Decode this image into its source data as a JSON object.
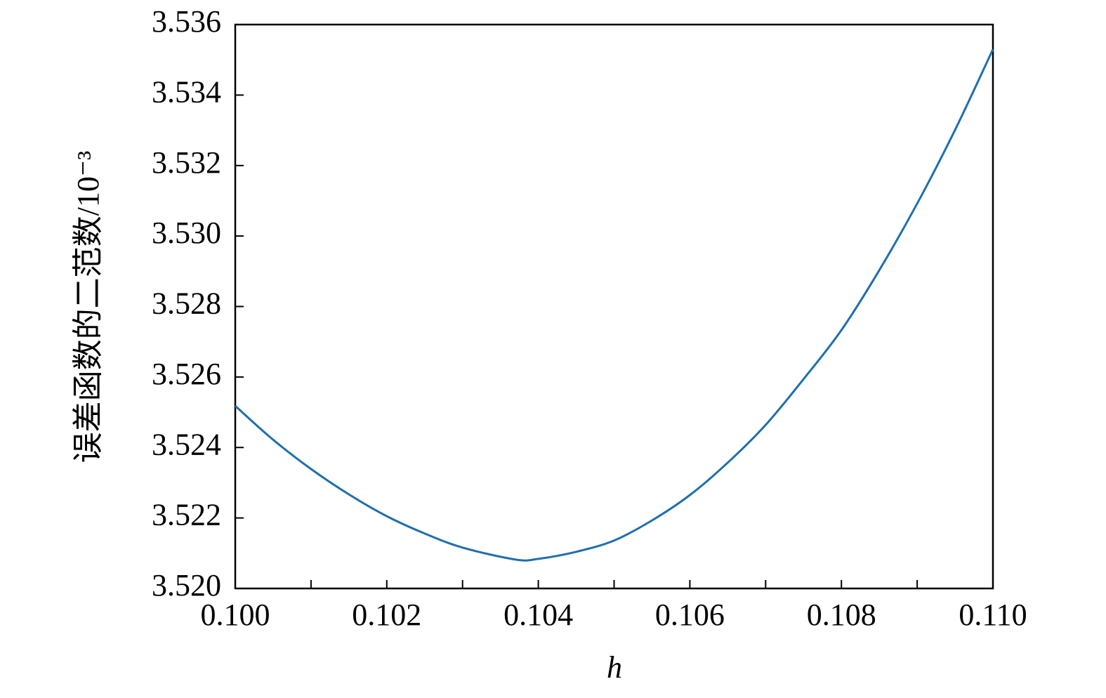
{
  "chart_data": {
    "type": "line",
    "x_label": "h",
    "y_label": "误差函数的二范数/10⁻³",
    "x": [
      0.1,
      0.1005,
      0.101,
      0.1015,
      0.102,
      0.1025,
      0.103,
      0.1037,
      0.104,
      0.1045,
      0.105,
      0.1055,
      0.106,
      0.1065,
      0.107,
      0.1075,
      0.108,
      0.1085,
      0.109,
      0.1095,
      0.11
    ],
    "series": [
      {
        "color": "#1f6fae",
        "values": [
          3.52518,
          3.52422,
          3.52339,
          3.52267,
          3.52205,
          3.52156,
          3.52116,
          3.52082,
          3.52084,
          3.52104,
          3.52136,
          3.52193,
          3.52265,
          3.52357,
          3.52464,
          3.52594,
          3.52733,
          3.52903,
          3.53092,
          3.53301,
          3.5353
        ]
      }
    ],
    "xlim": [
      0.1,
      0.11
    ],
    "ylim": [
      3.52,
      3.536
    ],
    "xticks": [
      {
        "value": 0.1,
        "label": "0.100"
      },
      {
        "value": 0.102,
        "label": "0.102"
      },
      {
        "value": 0.104,
        "label": "0.104"
      },
      {
        "value": 0.106,
        "label": "0.106"
      },
      {
        "value": 0.108,
        "label": "0.108"
      },
      {
        "value": 0.11,
        "label": "0.110"
      }
    ],
    "x_minor_ticks": [
      0.101,
      0.103,
      0.105,
      0.107,
      0.109
    ],
    "yticks": [
      {
        "value": 3.52,
        "label": "3.520"
      },
      3.522,
      3.524,
      3.526,
      3.528,
      {
        "value": 3.53,
        "label": "3.530"
      },
      3.532,
      3.534,
      3.536
    ],
    "grid": false
  }
}
